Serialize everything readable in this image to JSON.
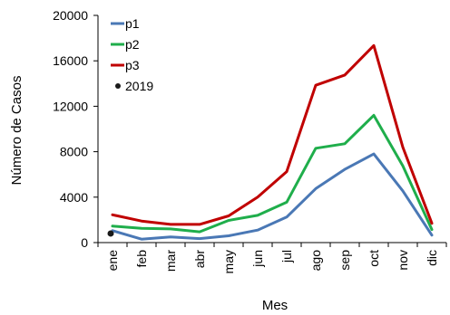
{
  "chart_data": {
    "type": "line",
    "xlabel": "Mes",
    "ylabel": "Número de Casos",
    "categories": [
      "ene",
      "feb",
      "mar",
      "abr",
      "may",
      "jun",
      "jul",
      "ago",
      "sep",
      "oct",
      "nov",
      "dic"
    ],
    "ylim": [
      0,
      20000
    ],
    "yticks": [
      0,
      4000,
      8000,
      12000,
      16000,
      20000
    ],
    "grid": false,
    "legend_position": "top-left",
    "series": [
      {
        "name": "p1",
        "color": "#4a78b5",
        "values": [
          1050,
          300,
          500,
          350,
          600,
          1100,
          2250,
          4750,
          6450,
          7800,
          4550,
          650
        ]
      },
      {
        "name": "p2",
        "color": "#1fae4b",
        "values": [
          1450,
          1250,
          1200,
          950,
          1950,
          2400,
          3550,
          8300,
          8700,
          11200,
          6750,
          1150
        ]
      },
      {
        "name": "p3",
        "color": "#c00000",
        "values": [
          2450,
          1900,
          1600,
          1600,
          2350,
          4000,
          6250,
          13850,
          14750,
          17350,
          8400,
          1700
        ]
      }
    ],
    "points": [
      {
        "name": "2019",
        "color": "#1a1a1a",
        "x": "ene",
        "y": 800
      }
    ]
  }
}
